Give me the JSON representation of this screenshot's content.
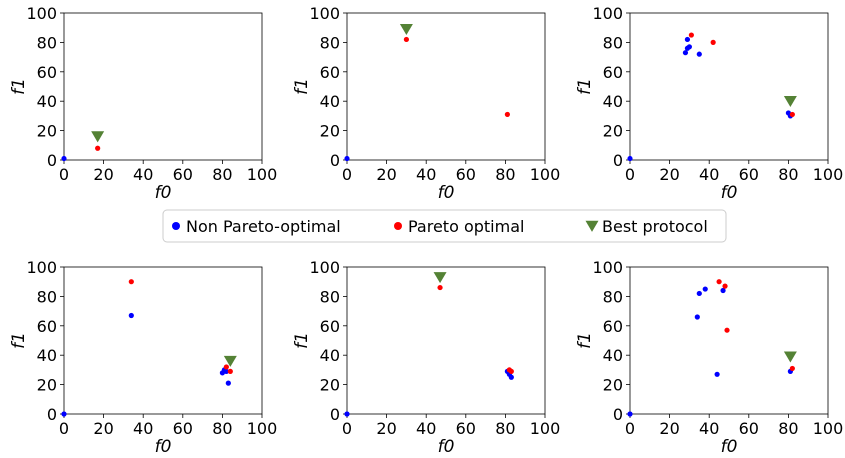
{
  "legend": {
    "entries": [
      {
        "label": "Non Pareto-optimal",
        "color": "#0000ff",
        "marker": "circle"
      },
      {
        "label": "Pareto optimal",
        "color": "#ff0000",
        "marker": "circle"
      },
      {
        "label": "Best protocol",
        "color": "#548235",
        "marker": "triangle-down"
      }
    ],
    "placement": "center"
  },
  "chart_data": [
    {
      "type": "scatter",
      "xlabel": "f0",
      "ylabel": "f1",
      "xlim": [
        0,
        100
      ],
      "ylim": [
        0,
        100
      ],
      "xticks": [
        0,
        20,
        40,
        60,
        80,
        100
      ],
      "yticks": [
        0,
        20,
        40,
        60,
        80,
        100
      ],
      "series": [
        {
          "name": "Non Pareto-optimal",
          "color": "#0000ff",
          "points": [
            [
              0,
              1
            ]
          ]
        },
        {
          "name": "Pareto optimal",
          "color": "#ff0000",
          "points": [
            [
              17,
              8
            ]
          ]
        },
        {
          "name": "Best protocol",
          "color": "#548235",
          "points": [
            [
              17,
              16
            ]
          ]
        }
      ]
    },
    {
      "type": "scatter",
      "xlabel": "f0",
      "ylabel": "f1",
      "xlim": [
        0,
        100
      ],
      "ylim": [
        0,
        100
      ],
      "xticks": [
        0,
        20,
        40,
        60,
        80,
        100
      ],
      "yticks": [
        0,
        20,
        40,
        60,
        80,
        100
      ],
      "series": [
        {
          "name": "Non Pareto-optimal",
          "color": "#0000ff",
          "points": [
            [
              0,
              1
            ]
          ]
        },
        {
          "name": "Pareto optimal",
          "color": "#ff0000",
          "points": [
            [
              30,
              82
            ],
            [
              81,
              31
            ]
          ]
        },
        {
          "name": "Best protocol",
          "color": "#548235",
          "points": [
            [
              30,
              89
            ]
          ]
        }
      ]
    },
    {
      "type": "scatter",
      "xlabel": "f0",
      "ylabel": "f1",
      "xlim": [
        0,
        100
      ],
      "ylim": [
        0,
        100
      ],
      "xticks": [
        0,
        20,
        40,
        60,
        80,
        100
      ],
      "yticks": [
        0,
        20,
        40,
        60,
        80,
        100
      ],
      "series": [
        {
          "name": "Non Pareto-optimal",
          "color": "#0000ff",
          "points": [
            [
              0,
              1
            ],
            [
              28,
              73
            ],
            [
              29,
              76
            ],
            [
              29,
              82
            ],
            [
              30,
              77
            ],
            [
              35,
              72
            ],
            [
              80,
              32
            ],
            [
              81,
              30
            ]
          ]
        },
        {
          "name": "Pareto optimal",
          "color": "#ff0000",
          "points": [
            [
              31,
              85
            ],
            [
              42,
              80
            ],
            [
              82,
              31
            ]
          ]
        },
        {
          "name": "Best protocol",
          "color": "#548235",
          "points": [
            [
              81,
              40
            ]
          ]
        }
      ]
    },
    {
      "type": "scatter",
      "xlabel": "f0",
      "ylabel": "f1",
      "xlim": [
        0,
        100
      ],
      "ylim": [
        0,
        100
      ],
      "xticks": [
        0,
        20,
        40,
        60,
        80,
        100
      ],
      "yticks": [
        0,
        20,
        40,
        60,
        80,
        100
      ],
      "series": [
        {
          "name": "Non Pareto-optimal",
          "color": "#0000ff",
          "points": [
            [
              0,
              0
            ],
            [
              34,
              67
            ],
            [
              80,
              28
            ],
            [
              81,
              30
            ],
            [
              83,
              21
            ],
            [
              82,
              29
            ]
          ]
        },
        {
          "name": "Pareto optimal",
          "color": "#ff0000",
          "points": [
            [
              34,
              90
            ],
            [
              82,
              32
            ],
            [
              84,
              29
            ]
          ]
        },
        {
          "name": "Best protocol",
          "color": "#548235",
          "points": [
            [
              84,
              36
            ]
          ]
        }
      ]
    },
    {
      "type": "scatter",
      "xlabel": "f0",
      "ylabel": "f1",
      "xlim": [
        0,
        100
      ],
      "ylim": [
        0,
        100
      ],
      "xticks": [
        0,
        20,
        40,
        60,
        80,
        100
      ],
      "yticks": [
        0,
        20,
        40,
        60,
        80,
        100
      ],
      "series": [
        {
          "name": "Non Pareto-optimal",
          "color": "#0000ff",
          "points": [
            [
              0,
              0
            ],
            [
              81,
              29
            ],
            [
              82,
              27
            ],
            [
              83,
              25
            ]
          ]
        },
        {
          "name": "Pareto optimal",
          "color": "#ff0000",
          "points": [
            [
              47,
              86
            ],
            [
              82,
              30
            ],
            [
              83,
              29
            ]
          ]
        },
        {
          "name": "Best protocol",
          "color": "#548235",
          "points": [
            [
              47,
              93
            ]
          ]
        }
      ]
    },
    {
      "type": "scatter",
      "xlabel": "f0",
      "ylabel": "f1",
      "xlim": [
        0,
        100
      ],
      "ylim": [
        0,
        100
      ],
      "xticks": [
        0,
        20,
        40,
        60,
        80,
        100
      ],
      "yticks": [
        0,
        20,
        40,
        60,
        80,
        100
      ],
      "series": [
        {
          "name": "Non Pareto-optimal",
          "color": "#0000ff",
          "points": [
            [
              0,
              0
            ],
            [
              34,
              66
            ],
            [
              35,
              82
            ],
            [
              38,
              85
            ],
            [
              44,
              27
            ],
            [
              47,
              84
            ],
            [
              81,
              29
            ]
          ]
        },
        {
          "name": "Pareto optimal",
          "color": "#ff0000",
          "points": [
            [
              45,
              90
            ],
            [
              48,
              87
            ],
            [
              49,
              57
            ],
            [
              82,
              31
            ]
          ]
        },
        {
          "name": "Best protocol",
          "color": "#548235",
          "points": [
            [
              81,
              39
            ]
          ]
        }
      ]
    }
  ]
}
